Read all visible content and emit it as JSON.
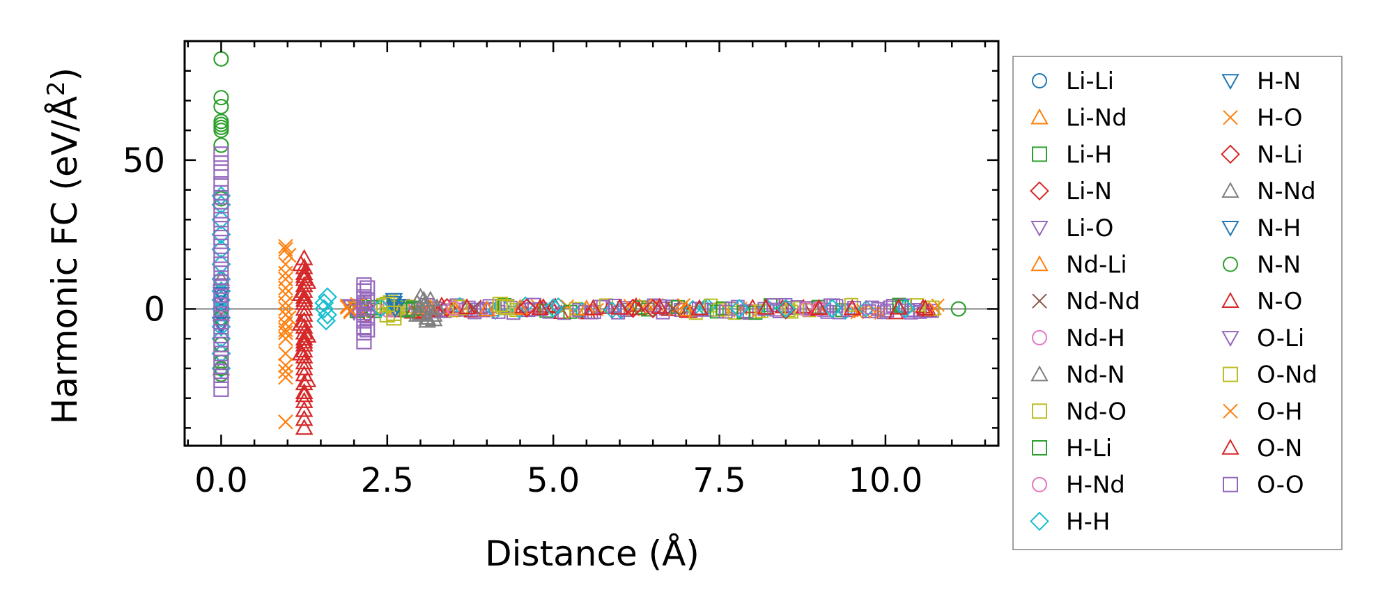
{
  "chart_data": {
    "type": "scatter",
    "xlabel": "Distance (Å)",
    "ylabel_main": "Harmonic FC (eV/Å",
    "ylabel_sup": "2",
    "ylabel_close": ")",
    "xlim": [
      -0.55,
      11.7
    ],
    "ylim": [
      -46,
      90
    ],
    "x_ticks": [
      0.0,
      2.5,
      5.0,
      7.5,
      10.0
    ],
    "x_tick_labels": [
      "0.0",
      "2.5",
      "5.0",
      "7.5",
      "10.0"
    ],
    "y_ticks": [
      0,
      50
    ],
    "y_tick_labels": [
      "0",
      "50"
    ],
    "x_minor_step": 0.5,
    "y_minor_step": 10,
    "zero_line": true,
    "legend_position": "outside-right",
    "series": [
      {
        "name": "Li-Li",
        "marker": "circle",
        "color": "#1f77b4",
        "points": [
          [
            0,
            2
          ],
          [
            0,
            -1
          ],
          [
            0,
            4
          ],
          [
            0,
            -3
          ]
        ]
      },
      {
        "name": "Li-Nd",
        "marker": "triangle-up",
        "color": "#ff7f0e",
        "points": [
          [
            3.1,
            0.6
          ],
          [
            3.5,
            0.3
          ],
          [
            4.0,
            -0.2
          ],
          [
            5.5,
            0.1
          ]
        ]
      },
      {
        "name": "Li-H",
        "marker": "square",
        "color": "#2ca02c",
        "points": [
          [
            2.05,
            0.5
          ],
          [
            2.3,
            -0.5
          ],
          [
            2.6,
            0.3
          ],
          [
            2.9,
            0.2
          ]
        ]
      },
      {
        "name": "Li-N",
        "marker": "diamond",
        "color": "#d62728",
        "points": [
          [
            2.15,
            1
          ],
          [
            2.2,
            -1.5
          ],
          [
            3.4,
            0.4
          ],
          [
            6.2,
            0.2
          ],
          [
            8.5,
            -0.3
          ]
        ]
      },
      {
        "name": "Li-O",
        "marker": "triangle-down",
        "color": "#9467bd",
        "points": [
          [
            0,
            8
          ],
          [
            0,
            -6
          ],
          [
            1.95,
            1
          ],
          [
            2.0,
            -1
          ]
        ]
      },
      {
        "name": "Nd-Li",
        "marker": "triangle-up",
        "color": "#ff7f0e",
        "points": [
          [
            3.15,
            0.4
          ],
          [
            4.5,
            0.3
          ],
          [
            7.0,
            -0.2
          ]
        ]
      },
      {
        "name": "Nd-Nd",
        "marker": "x",
        "color": "#8c564b",
        "points": [
          [
            0,
            3
          ],
          [
            0,
            -2
          ],
          [
            3.8,
            0.3
          ],
          [
            6.8,
            0.1
          ]
        ]
      },
      {
        "name": "Nd-H",
        "marker": "circle",
        "color": "#e377c2",
        "points": [
          [
            0,
            1
          ],
          [
            2.4,
            0.3
          ],
          [
            2.6,
            -0.2
          ],
          [
            9.0,
            0.1
          ]
        ]
      },
      {
        "name": "Nd-N",
        "marker": "triangle-up",
        "color": "#7f7f7f",
        "points": [
          [
            0,
            -20
          ],
          [
            0,
            10
          ],
          [
            2.95,
            2
          ],
          [
            3.0,
            -1.5
          ],
          [
            3.05,
            1
          ],
          [
            3.1,
            -3
          ],
          [
            3.15,
            3
          ],
          [
            3.2,
            -2
          ],
          [
            3.25,
            0.5
          ],
          [
            3.0,
            4
          ],
          [
            3.1,
            -4
          ]
        ]
      },
      {
        "name": "Nd-O",
        "marker": "square",
        "color": "#bcbd22",
        "points": [
          [
            2.45,
            1
          ],
          [
            2.5,
            -2
          ],
          [
            2.55,
            2
          ],
          [
            2.6,
            -3
          ],
          [
            2.65,
            0.5
          ],
          [
            3.6,
            0.5
          ],
          [
            4.2,
            1.5
          ],
          [
            4.3,
            0.5
          ],
          [
            10.7,
            0.2
          ]
        ]
      },
      {
        "name": "H-Li",
        "marker": "square",
        "color": "#2ca02c",
        "points": [
          [
            2.05,
            -0.5
          ],
          [
            2.3,
            0.4
          ],
          [
            2.8,
            -0.3
          ]
        ]
      },
      {
        "name": "H-Nd",
        "marker": "circle",
        "color": "#e377c2",
        "points": [
          [
            2.5,
            -0.3
          ],
          [
            3.5,
            0.2
          ],
          [
            8.8,
            -0.1
          ]
        ]
      },
      {
        "name": "H-H",
        "marker": "diamond",
        "color": "#17becf",
        "points": [
          [
            0,
            0
          ],
          [
            0,
            3
          ],
          [
            0,
            -3
          ],
          [
            0,
            6
          ],
          [
            0,
            -6
          ],
          [
            0,
            10
          ],
          [
            0,
            -10
          ],
          [
            0,
            15
          ],
          [
            0,
            -15
          ],
          [
            0,
            20
          ],
          [
            0,
            -20
          ],
          [
            0,
            25
          ],
          [
            0,
            30
          ],
          [
            0,
            35
          ],
          [
            0,
            38
          ],
          [
            1.55,
            2
          ],
          [
            1.6,
            -2
          ],
          [
            1.6,
            4
          ],
          [
            1.58,
            -4
          ],
          [
            1.55,
            0
          ],
          [
            2.4,
            0.3
          ],
          [
            5.0,
            0.3
          ],
          [
            7.8,
            0.1
          ],
          [
            8.5,
            0.1
          ],
          [
            9.2,
            0.1
          ],
          [
            10.3,
            0.2
          ]
        ]
      },
      {
        "name": "H-N",
        "marker": "triangle-down",
        "color": "#1f77b4",
        "points": [
          [
            0,
            5
          ],
          [
            0,
            -5
          ],
          [
            2.6,
            3
          ],
          [
            2.65,
            1
          ]
        ]
      },
      {
        "name": "H-O",
        "marker": "x",
        "color": "#ff7f0e",
        "points": [
          [
            0.97,
            21
          ],
          [
            0.97,
            20
          ],
          [
            0.97,
            12
          ],
          [
            0.97,
            10
          ],
          [
            0.97,
            5
          ],
          [
            0.97,
            2
          ],
          [
            0.97,
            0
          ],
          [
            0.97,
            -2
          ],
          [
            0.97,
            -5
          ],
          [
            0.97,
            -8
          ],
          [
            0.97,
            -10
          ],
          [
            0.97,
            -19
          ],
          [
            0.97,
            -21
          ],
          [
            0.97,
            -23
          ],
          [
            0.97,
            -38
          ],
          [
            1.02,
            18
          ],
          [
            1.02,
            -3
          ],
          [
            1.9,
            1
          ],
          [
            1.95,
            -1
          ],
          [
            2.0,
            0.5
          ],
          [
            2.05,
            1.5
          ],
          [
            2.1,
            -0.5
          ]
        ]
      },
      {
        "name": "N-Li",
        "marker": "diamond",
        "color": "#d62728",
        "points": [
          [
            4.6,
            0.3
          ],
          [
            6.5,
            0.1
          ]
        ]
      },
      {
        "name": "N-Nd",
        "marker": "triangle-up",
        "color": "#7f7f7f",
        "points": [
          [
            2.95,
            -2
          ],
          [
            3.05,
            3
          ],
          [
            3.2,
            -3.5
          ]
        ]
      },
      {
        "name": "N-H",
        "marker": "triangle-down",
        "color": "#1f77b4",
        "points": [
          [
            2.6,
            2
          ],
          [
            2.62,
            0
          ]
        ]
      },
      {
        "name": "N-N",
        "marker": "circle",
        "color": "#2ca02c",
        "points": [
          [
            0,
            84
          ],
          [
            0,
            71
          ],
          [
            0,
            68
          ],
          [
            0,
            63
          ],
          [
            0,
            62
          ],
          [
            0,
            61
          ],
          [
            0,
            60
          ],
          [
            0,
            55
          ],
          [
            0,
            37
          ],
          [
            0,
            -3
          ],
          [
            0,
            -12
          ],
          [
            0,
            -18
          ],
          [
            0,
            -20
          ],
          [
            0,
            -22
          ],
          [
            11.1,
            0
          ]
        ]
      },
      {
        "name": "N-O",
        "marker": "triangle-up",
        "color": "#d62728",
        "points": [
          [
            1.25,
            17
          ],
          [
            1.25,
            14
          ],
          [
            1.25,
            12
          ],
          [
            1.25,
            10
          ],
          [
            1.25,
            8
          ],
          [
            1.25,
            6
          ],
          [
            1.25,
            4
          ],
          [
            1.25,
            2
          ],
          [
            1.25,
            0
          ],
          [
            1.25,
            -2
          ],
          [
            1.25,
            -4
          ],
          [
            1.25,
            -6
          ],
          [
            1.25,
            -8
          ],
          [
            1.25,
            -10
          ],
          [
            1.25,
            -12
          ],
          [
            1.25,
            -14
          ],
          [
            1.25,
            -16
          ],
          [
            1.25,
            -18
          ],
          [
            1.25,
            -20
          ],
          [
            1.25,
            -22
          ],
          [
            1.25,
            -25
          ],
          [
            1.25,
            -28
          ],
          [
            1.25,
            -31
          ],
          [
            1.25,
            -34
          ],
          [
            1.25,
            -37
          ],
          [
            1.25,
            -40
          ],
          [
            1.2,
            15
          ],
          [
            1.2,
            5
          ],
          [
            1.2,
            -5
          ],
          [
            1.2,
            -15
          ],
          [
            1.3,
            9
          ],
          [
            1.3,
            -9
          ],
          [
            1.3,
            -24
          ],
          [
            3.7,
            0.5
          ],
          [
            4.8,
            0.3
          ],
          [
            6.0,
            0.4
          ],
          [
            6.6,
            0.6
          ],
          [
            7.2,
            0.2
          ],
          [
            8.2,
            0.4
          ],
          [
            9.5,
            0.2
          ],
          [
            10.2,
            0.4
          ],
          [
            10.6,
            0.1
          ]
        ]
      },
      {
        "name": "O-Li",
        "marker": "triangle-down",
        "color": "#9467bd",
        "points": [
          [
            1.96,
            0.8
          ],
          [
            2.01,
            -0.6
          ]
        ]
      },
      {
        "name": "O-Nd",
        "marker": "square",
        "color": "#bcbd22",
        "points": [
          [
            2.5,
            1.5
          ],
          [
            2.6,
            -1.5
          ],
          [
            4.25,
            0.8
          ]
        ]
      },
      {
        "name": "O-H",
        "marker": "x",
        "color": "#ff7f0e",
        "points": [
          [
            0.97,
            15
          ],
          [
            0.97,
            -15
          ],
          [
            0.97,
            7
          ],
          [
            0.97,
            -7
          ],
          [
            1.9,
            0.5
          ],
          [
            1.95,
            -0.5
          ]
        ]
      },
      {
        "name": "O-N",
        "marker": "triangle-up",
        "color": "#d62728",
        "points": [
          [
            1.25,
            11
          ],
          [
            1.25,
            -11
          ],
          [
            1.25,
            3
          ],
          [
            1.25,
            -29
          ],
          [
            5.6,
            0.2
          ],
          [
            9.0,
            0.3
          ]
        ]
      },
      {
        "name": "O-O",
        "marker": "square",
        "color": "#9467bd",
        "points": [
          [
            0,
            52
          ],
          [
            0,
            49
          ],
          [
            0,
            46
          ],
          [
            0,
            42
          ],
          [
            0,
            39
          ],
          [
            0,
            36
          ],
          [
            0,
            33
          ],
          [
            0,
            30
          ],
          [
            0,
            27
          ],
          [
            0,
            24
          ],
          [
            0,
            21
          ],
          [
            0,
            18
          ],
          [
            0,
            15
          ],
          [
            0,
            12
          ],
          [
            0,
            9
          ],
          [
            0,
            6
          ],
          [
            0,
            3
          ],
          [
            0,
            0
          ],
          [
            0,
            -3
          ],
          [
            0,
            -6
          ],
          [
            0,
            -9
          ],
          [
            0,
            -12
          ],
          [
            0,
            -15
          ],
          [
            0,
            -18
          ],
          [
            0,
            -21
          ],
          [
            0,
            -24
          ],
          [
            0,
            -27
          ],
          [
            2.15,
            8
          ],
          [
            2.15,
            6
          ],
          [
            2.15,
            4
          ],
          [
            2.15,
            2
          ],
          [
            2.15,
            0
          ],
          [
            2.15,
            -2
          ],
          [
            2.15,
            -4
          ],
          [
            2.15,
            -6
          ],
          [
            2.15,
            -8
          ],
          [
            2.15,
            -11
          ],
          [
            2.2,
            7
          ],
          [
            2.2,
            3
          ],
          [
            2.2,
            -3
          ],
          [
            2.2,
            -7
          ]
        ]
      }
    ],
    "band_color_order": [
      "#9467bd",
      "#d62728",
      "#17becf",
      "#bcbd22",
      "#9467bd",
      "#ff7f0e",
      "#9467bd",
      "#d62728",
      "#9467bd",
      "#2ca02c",
      "#9467bd"
    ],
    "band_x_range": [
      2.6,
      10.8
    ],
    "band_y_spread": 1.4
  }
}
